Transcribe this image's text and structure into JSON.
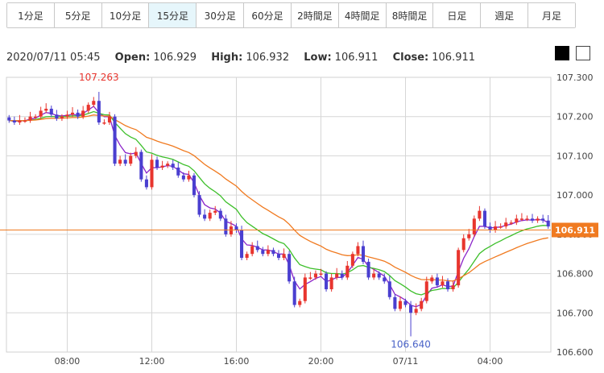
{
  "tabs": [
    {
      "label": "1分足",
      "active": false
    },
    {
      "label": "5分足",
      "active": false
    },
    {
      "label": "10分足",
      "active": false
    },
    {
      "label": "15分足",
      "active": true
    },
    {
      "label": "30分足",
      "active": false
    },
    {
      "label": "60分足",
      "active": false
    },
    {
      "label": "2時間足",
      "active": false
    },
    {
      "label": "4時間足",
      "active": false
    },
    {
      "label": "8時間足",
      "active": false
    },
    {
      "label": "日足",
      "active": false
    },
    {
      "label": "週足",
      "active": false
    },
    {
      "label": "月足",
      "active": false
    }
  ],
  "info": {
    "datetime": "2020/07/11 05:45",
    "open_label": "Open:",
    "open": "106.929",
    "high_label": "High:",
    "high": "106.932",
    "low_label": "Low:",
    "low": "106.911",
    "close_label": "Close:",
    "close": "106.911"
  },
  "theme_buttons": {
    "dark": "black",
    "light": "white"
  },
  "chart_data": {
    "type": "candlestick",
    "y_range": [
      106.6,
      107.3
    ],
    "y_ticks": [
      "107.300",
      "107.200",
      "107.100",
      "107.000",
      "106.900",
      "106.800",
      "106.700",
      "106.600"
    ],
    "x_ticks": [
      {
        "label": "08:00",
        "index": 11
      },
      {
        "label": "12:00",
        "index": 27
      },
      {
        "label": "16:00",
        "index": 43
      },
      {
        "label": "20:00",
        "index": 59
      },
      {
        "label": "07/11",
        "index": 75
      },
      {
        "label": "04:00",
        "index": 91
      }
    ],
    "current_price": "106.911",
    "high_annotation": "107.263",
    "low_annotation": "106.640",
    "colors": {
      "up": "#e8352e",
      "down": "#4a3fd0",
      "ma_short": "#8b24c9",
      "ma_mid": "#3dbf2a",
      "ma_long": "#f07a20",
      "price_line": "#f07a20",
      "price_tag": "#f07a20"
    },
    "close_values": [
      107.19,
      107.185,
      107.19,
      107.19,
      107.2,
      107.2,
      107.215,
      107.22,
      107.205,
      107.195,
      107.2,
      107.205,
      107.21,
      107.2,
      107.215,
      107.23,
      107.24,
      107.185,
      107.185,
      107.2,
      107.08,
      107.09,
      107.08,
      107.1,
      107.11,
      107.04,
      107.02,
      107.09,
      107.07,
      107.075,
      107.08,
      107.07,
      107.05,
      107.04,
      107.05,
      107.0,
      106.95,
      106.94,
      106.955,
      106.96,
      106.94,
      106.9,
      106.92,
      106.91,
      106.84,
      106.85,
      106.87,
      106.86,
      106.85,
      106.86,
      106.85,
      106.84,
      106.85,
      106.78,
      106.72,
      106.73,
      106.79,
      106.79,
      106.8,
      106.8,
      106.76,
      106.79,
      106.8,
      106.79,
      106.82,
      106.85,
      106.87,
      106.83,
      106.79,
      106.8,
      106.79,
      106.78,
      106.74,
      106.71,
      106.73,
      106.72,
      106.7,
      106.71,
      106.73,
      106.78,
      106.79,
      106.77,
      106.78,
      106.76,
      106.77,
      106.86,
      106.89,
      106.9,
      106.94,
      106.96,
      106.92,
      106.91,
      106.92,
      106.92,
      106.93,
      106.93,
      106.94,
      106.94,
      106.94,
      106.935,
      106.94,
      106.935,
      106.92
    ]
  }
}
